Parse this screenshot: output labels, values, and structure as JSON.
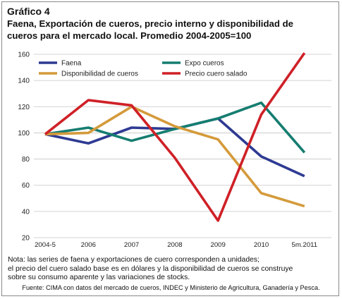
{
  "figure": {
    "label": "Gráfico 4",
    "title_line1": "Faena, Exportación de cueros, precio interno y disponibilidad de",
    "title_line2": "cueros para el mercado local. Promedio 2004-2005=100",
    "note_line1": "Nota: las series de faena y exportaciones de cuero corresponden a unidades;",
    "note_line2": "el precio del cuero salado base es en dólares y la disponibilidad de cueros se construye",
    "note_line3": "sobre su consumo aparente y las variaciones de stocks.",
    "source": "Fuente: CIMA con datos del mercado de cueros, INDEC y Ministerio de Agricultura, Ganadería y Pesca."
  },
  "chart_data": {
    "type": "line",
    "title": "Faena, Exportación de cueros, precio interno y disponibilidad de cueros para el mercado local. Promedio 2004-2005=100",
    "categories": [
      "2004-5",
      "2006",
      "2007",
      "2008",
      "2009",
      "2010",
      "5m.2011"
    ],
    "ylim": [
      20,
      160
    ],
    "yticks": [
      20,
      40,
      60,
      80,
      100,
      120,
      140,
      160
    ],
    "grid": true,
    "legend_position": "top",
    "series": [
      {
        "name": "Faena",
        "color": "#2e3a92",
        "values": [
          99,
          92,
          104,
          103,
          111,
          82,
          67
        ]
      },
      {
        "name": "Expo cueros",
        "color": "#157d70",
        "values": [
          99,
          104,
          94,
          103,
          111,
          123,
          85
        ]
      },
      {
        "name": "Disponibilidad de cueros",
        "color": "#d49a3a",
        "values": [
          99,
          100,
          120,
          105,
          95,
          54,
          44
        ]
      },
      {
        "name": "Precio cuero salado",
        "color": "#cf2027",
        "values": [
          99,
          125,
          121,
          81,
          33,
          114,
          161
        ]
      }
    ]
  }
}
